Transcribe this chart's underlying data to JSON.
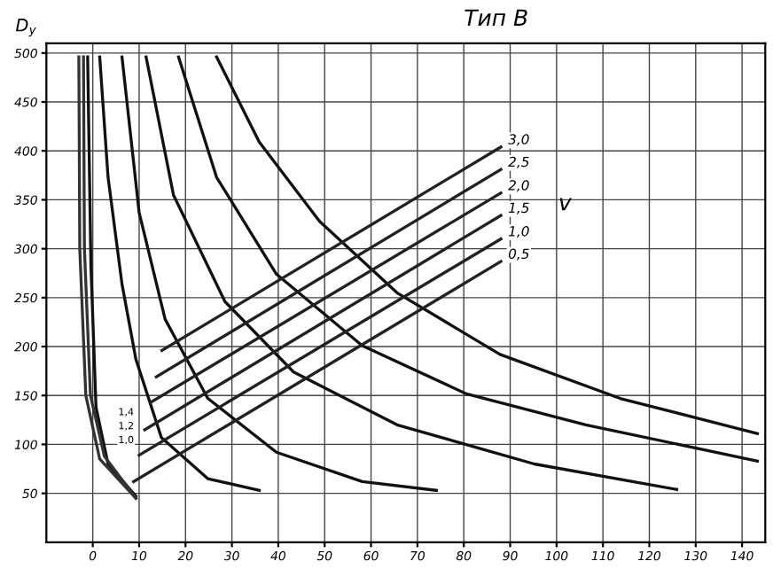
{
  "chart_data": {
    "type": "line",
    "title": "Тип В",
    "ylabel": "D$_{y}$",
    "legend_title": "v",
    "xlim": [
      -10,
      145
    ],
    "ylim": [
      0,
      510
    ],
    "xticks": [
      0,
      10,
      20,
      30,
      40,
      50,
      60,
      70,
      80,
      90,
      100,
      110,
      120,
      130,
      140
    ],
    "yticks": [
      50,
      100,
      150,
      200,
      250,
      300,
      350,
      400,
      450,
      500
    ],
    "grid": true,
    "marker": "none",
    "line_style": "solid",
    "legend": false,
    "series": [
      {
        "color": "#111111",
        "x": [
          -1.1,
          -0.4,
          0.7,
          3.3,
          9.3
        ],
        "values": [
          496,
          283,
          138,
          80,
          47
        ]
      },
      {
        "color": "#111111",
        "x": [
          1.5,
          3.3,
          6.3,
          9.3,
          14.8,
          24.8,
          35.9
        ],
        "values": [
          496,
          373,
          264,
          187,
          107,
          65,
          53
        ]
      },
      {
        "color": "#111111",
        "x": [
          6.3,
          10,
          15.6,
          24.8,
          39.6,
          58.1,
          74.1
        ],
        "values": [
          496,
          337,
          228,
          147,
          92,
          62,
          53
        ]
      },
      {
        "color": "#111111",
        "x": [
          11.5,
          17.4,
          28.5,
          43.3,
          65.6,
          95.2,
          125.9
        ],
        "values": [
          496,
          355,
          246,
          174,
          120,
          80,
          54
        ]
      },
      {
        "color": "#111111",
        "x": [
          18.5,
          26.7,
          39.6,
          58.1,
          80.4,
          106.3,
          143.3
        ],
        "values": [
          496,
          373,
          274,
          201,
          152,
          120,
          83
        ]
      },
      {
        "color": "#111111",
        "x": [
          26.7,
          35.9,
          48.9,
          65.6,
          87.8,
          113.7,
          143.3
        ],
        "values": [
          496,
          409,
          328,
          255,
          192,
          147,
          111
        ]
      },
      {
        "color": "#333333",
        "x": [
          -2,
          -1.8,
          -0.5,
          2.5,
          9.3
        ],
        "values": [
          496,
          300,
          150,
          88,
          45
        ]
      },
      {
        "color": "#333333",
        "x": [
          -3,
          -2.8,
          -1.5,
          1.5,
          9.3
        ],
        "values": [
          496,
          300,
          150,
          85,
          45
        ]
      },
      {
        "name": "3,0",
        "color": "#222222",
        "x": [
          14.9,
          88
        ],
        "values": [
          196,
          404
        ]
      },
      {
        "name": "2,5",
        "color": "#222222",
        "x": [
          13.7,
          88
        ],
        "values": [
          169,
          381
        ]
      },
      {
        "name": "2,0",
        "color": "#222222",
        "x": [
          12.5,
          88
        ],
        "values": [
          143,
          357
        ]
      },
      {
        "name": "1,5",
        "color": "#222222",
        "x": [
          11.2,
          88
        ],
        "values": [
          115,
          334
        ]
      },
      {
        "name": "1,0",
        "color": "#222222",
        "x": [
          10.0,
          88
        ],
        "values": [
          89,
          310
        ]
      },
      {
        "name": "0,5",
        "color": "#222222",
        "x": [
          8.8,
          88
        ],
        "values": [
          62,
          287
        ]
      }
    ],
    "annotations": [
      "1,4",
      "1,2",
      "1,0"
    ]
  }
}
